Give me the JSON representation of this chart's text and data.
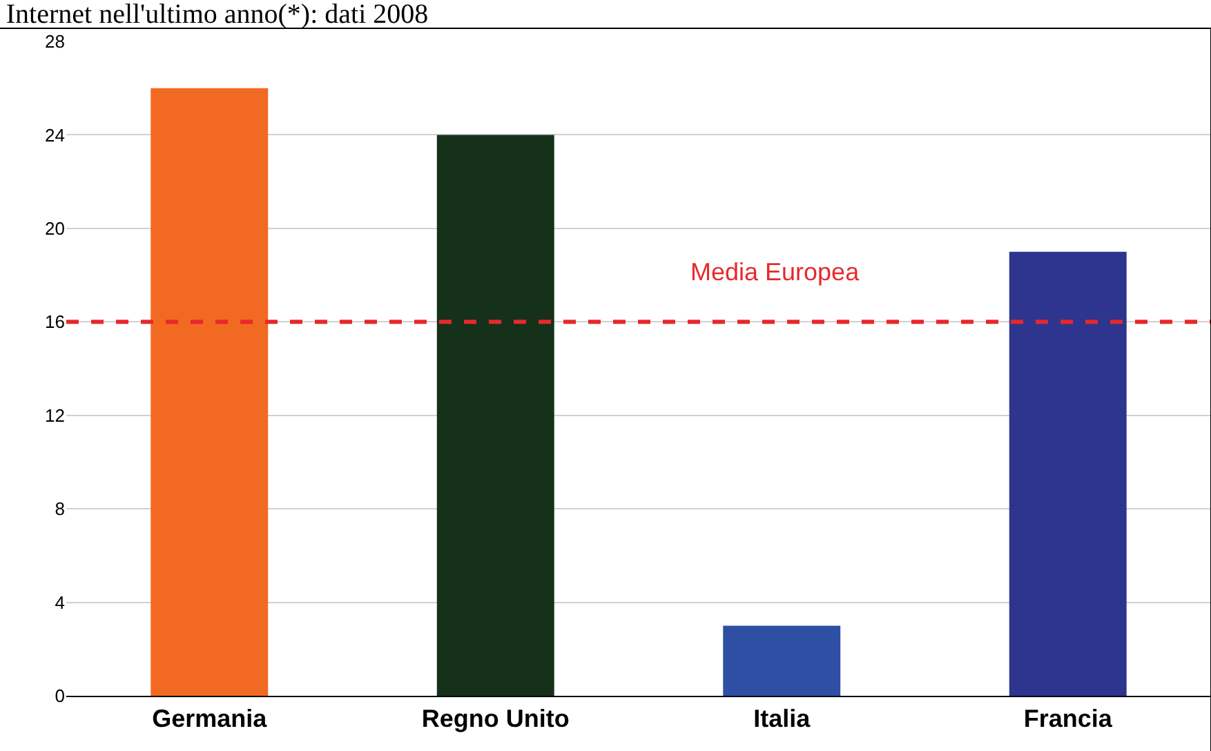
{
  "chart_data": {
    "type": "bar",
    "title": "Internet nell'ultimo anno(*): dati 2008",
    "categories": [
      "Germania",
      "Regno Unito",
      "Italia",
      "Francia"
    ],
    "values": [
      26,
      24,
      3,
      19
    ],
    "colors": [
      "#f26a21",
      "#15311a",
      "#2e4fa3",
      "#2e358e"
    ],
    "ylim": [
      0,
      28
    ],
    "yticks": [
      0,
      4,
      8,
      12,
      16,
      20,
      24,
      28
    ],
    "grid": "y",
    "ref_lines": [
      {
        "axis": "y",
        "value": 16,
        "label": "Media Europea",
        "color": "#e8282b",
        "line_style": "dashed"
      }
    ]
  }
}
